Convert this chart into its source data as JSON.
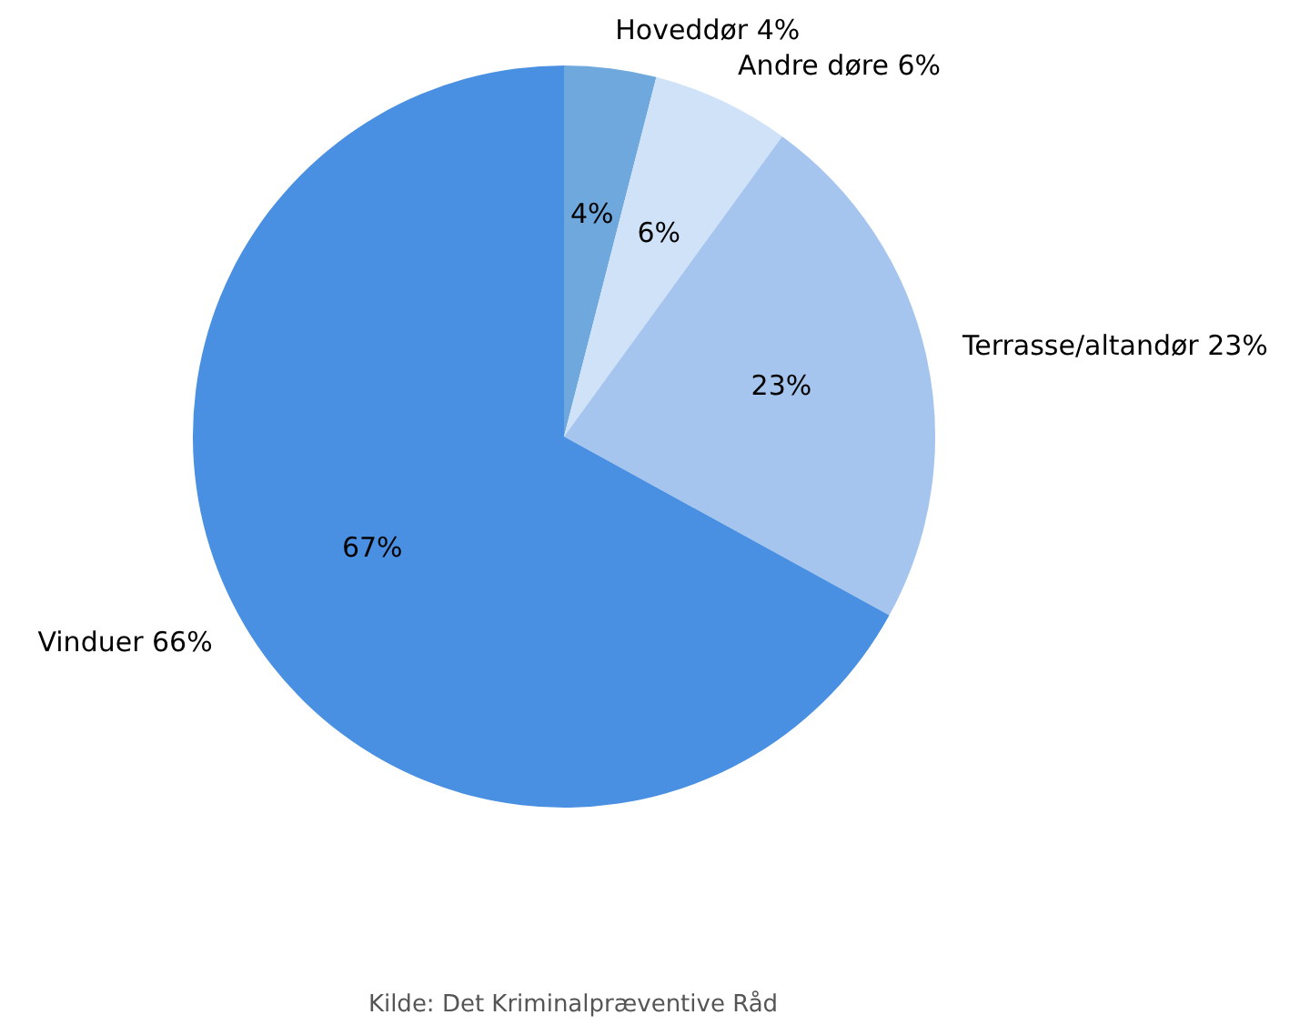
{
  "chart_data": {
    "type": "pie",
    "categories": [
      "Hoveddør 4%",
      "Andre døre 6%",
      "Terrasse/altandør 23%",
      "Vinduer 66%"
    ],
    "values": [
      4,
      6,
      23,
      67
    ],
    "colors": [
      "#6fa8dc",
      "#cfe2f8",
      "#a6c5ee",
      "#4a90e2"
    ],
    "value_labels": [
      "4%",
      "6%",
      "23%",
      "67%"
    ],
    "legend": false,
    "annotations": [
      "Kilde: Det Kriminalpræventive Råd"
    ]
  }
}
